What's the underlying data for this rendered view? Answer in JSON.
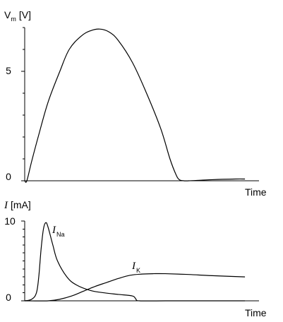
{
  "chart_data": [
    {
      "type": "line",
      "ylabel": {
        "main": "V",
        "sub": "m",
        "unit": "[V]"
      },
      "xlabel": "Time",
      "ylim": [
        0,
        7
      ],
      "yticks": [
        {
          "value": 0,
          "label": "0"
        },
        {
          "value": 5,
          "label": "5"
        }
      ],
      "minor_tick_step": 1,
      "xlim": [
        0,
        10
      ],
      "series": [
        {
          "x": [
            0,
            0.09,
            0.3,
            0.6,
            1.0,
            1.5,
            1.9,
            2.4,
            2.8,
            3.2,
            3.6,
            4.0,
            4.6,
            5.2,
            5.8,
            6.2,
            6.45,
            6.6,
            6.8,
            7.0,
            8.0,
            9.0,
            9.4
          ],
          "y": [
            0,
            0,
            0.9,
            2.1,
            3.6,
            5.0,
            6.0,
            6.6,
            6.85,
            6.93,
            6.8,
            6.4,
            5.4,
            4.0,
            2.4,
            1.0,
            0.3,
            0.05,
            0,
            0,
            0.05,
            0.08,
            0.08
          ]
        }
      ]
    },
    {
      "type": "line",
      "ylabel": {
        "main": "I",
        "unit": "[mA]"
      },
      "xlabel": "Time",
      "ylim": [
        0,
        10
      ],
      "yticks": [
        {
          "value": 0,
          "label": "0"
        },
        {
          "value": 10,
          "label": "10"
        }
      ],
      "minor_tick_step": 1,
      "xlim": [
        0,
        10
      ],
      "series": [
        {
          "label": {
            "main": "I",
            "sub": "Na"
          },
          "x": [
            0,
            0.3,
            0.5,
            0.6,
            0.7,
            0.8,
            0.9,
            1.0,
            1.2,
            1.4,
            1.8,
            2.2,
            2.8,
            3.4,
            4.0,
            4.6,
            4.75,
            4.9,
            6.0,
            8.0,
            9.4
          ],
          "y": [
            0,
            0.2,
            1.0,
            3.0,
            6.5,
            9.0,
            9.8,
            9.2,
            7.0,
            5.0,
            3.0,
            2.0,
            1.3,
            1.0,
            0.8,
            0.6,
            0.2,
            0,
            0,
            0,
            0
          ]
        },
        {
          "label": {
            "main": "I",
            "sub": "K"
          },
          "x": [
            0,
            1.0,
            1.5,
            2.0,
            2.5,
            3.0,
            3.5,
            4.0,
            4.5,
            5.0,
            5.5,
            6.0,
            7.0,
            8.0,
            9.4
          ],
          "y": [
            0,
            0,
            0.2,
            0.6,
            1.2,
            1.8,
            2.3,
            2.8,
            3.2,
            3.35,
            3.4,
            3.4,
            3.3,
            3.15,
            3.0
          ]
        }
      ]
    }
  ]
}
